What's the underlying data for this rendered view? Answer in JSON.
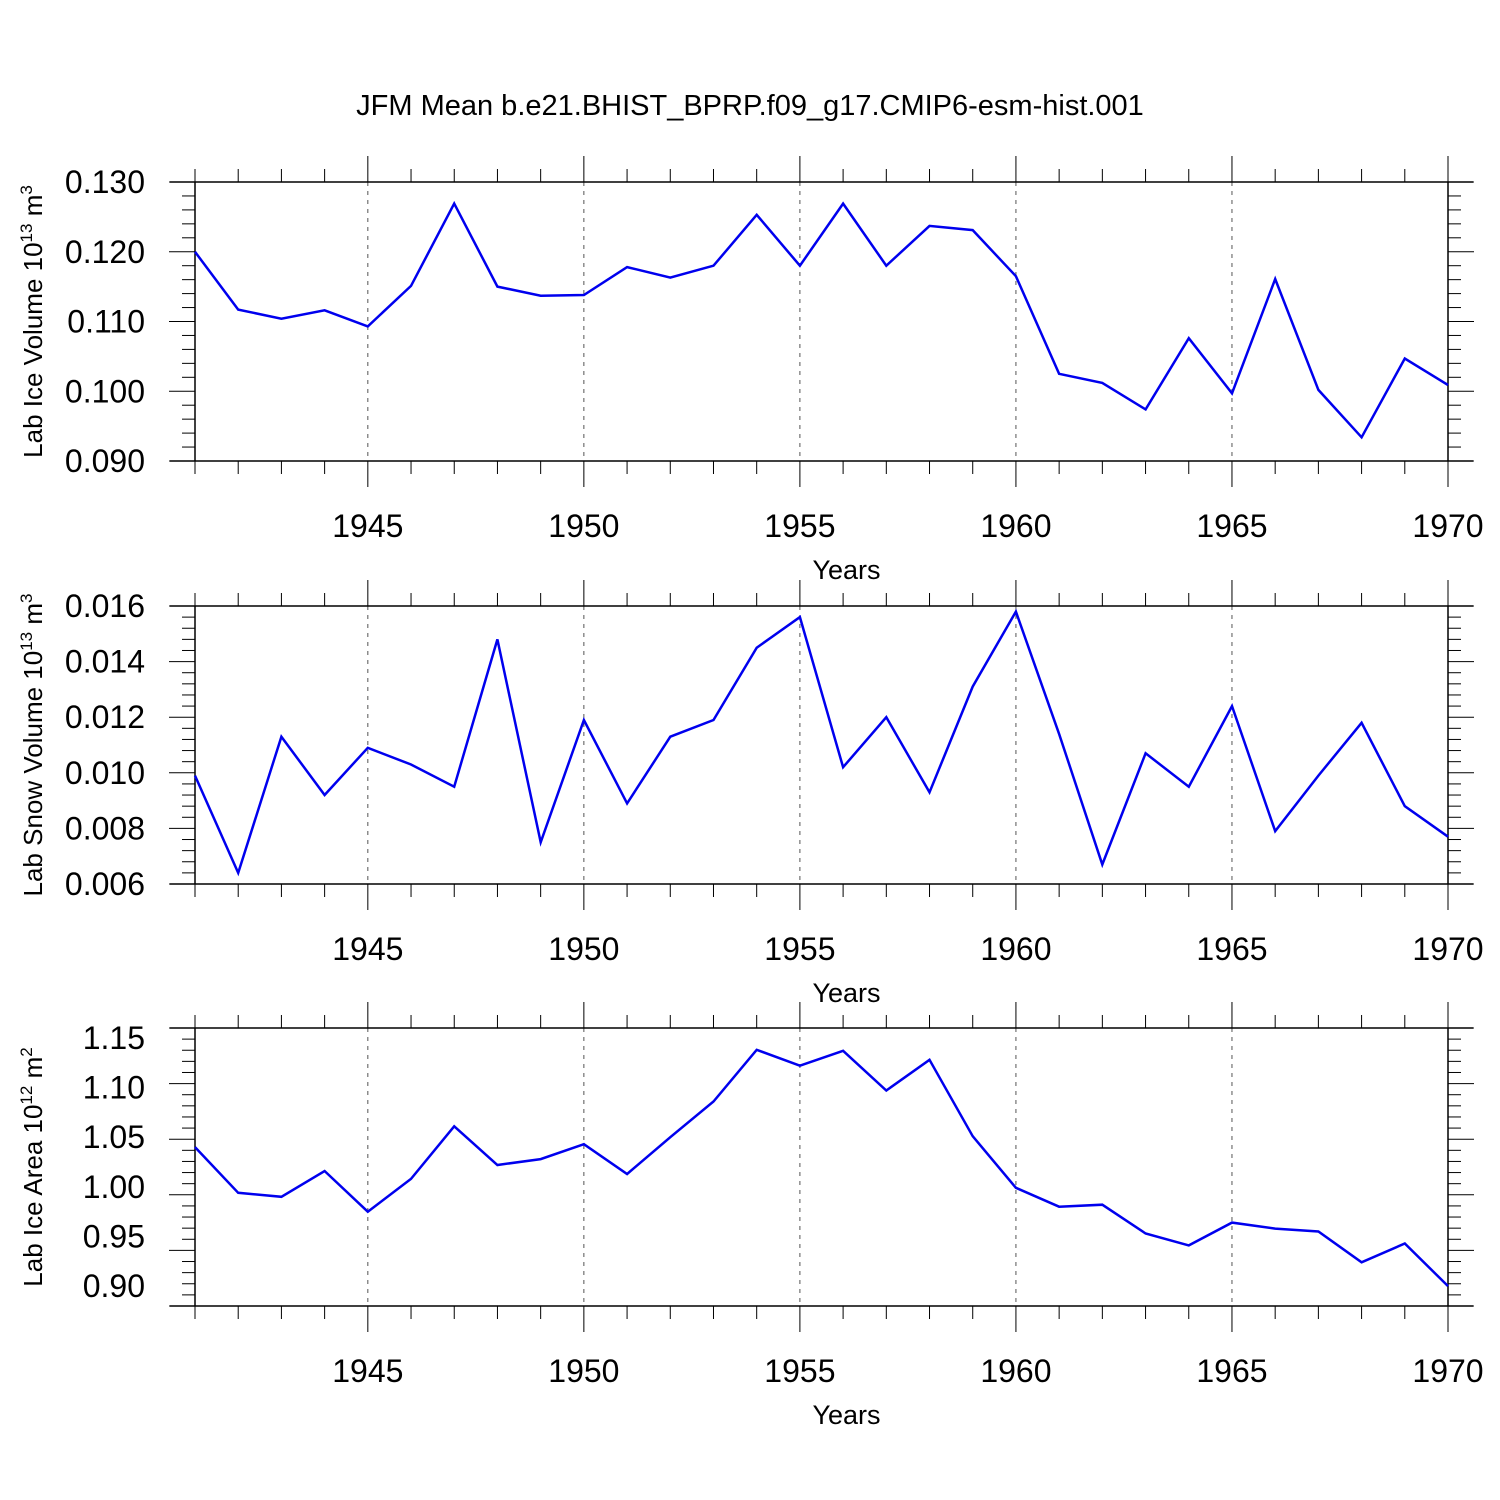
{
  "figure": {
    "title": "JFM Mean b.e21.BHIST_BPRP.f09_g17.CMIP6-esm-hist.001"
  },
  "colors": {
    "line": "#0000ee",
    "axis": "#000000",
    "grid": "#555555"
  },
  "chart_data": [
    {
      "type": "line",
      "xlabel": "Years",
      "ylabel": {
        "text": "Lab Ice Volume 10",
        "exp": "13",
        "unit": " m",
        "unit_exp": "3"
      },
      "xlim": [
        1941,
        1970
      ],
      "ylim": [
        0.09,
        0.13
      ],
      "x_ticks": [
        1945,
        1950,
        1955,
        1960,
        1965,
        1970
      ],
      "y_ticks": [
        "0.090",
        "0.100",
        "0.110",
        "0.120",
        "0.130"
      ],
      "grid": "vertical-dashed",
      "x": [
        1941,
        1942,
        1943,
        1944,
        1945,
        1946,
        1947,
        1948,
        1949,
        1950,
        1951,
        1952,
        1953,
        1954,
        1955,
        1956,
        1957,
        1958,
        1959,
        1960,
        1961,
        1962,
        1963,
        1964,
        1965,
        1966,
        1967,
        1968,
        1969,
        1970
      ],
      "values": [
        0.12,
        0.1117,
        0.1104,
        0.1116,
        0.1093,
        0.1151,
        0.1269,
        0.115,
        0.1137,
        0.1138,
        0.1178,
        0.1163,
        0.118,
        0.1253,
        0.118,
        0.1269,
        0.118,
        0.1237,
        0.1231,
        0.1165,
        0.1025,
        0.1012,
        0.0974,
        0.1076,
        0.0997,
        0.1161,
        0.1002,
        0.0934,
        0.1047,
        0.1009
      ]
    },
    {
      "type": "line",
      "xlabel": "Years",
      "ylabel": {
        "text": "Lab Snow Volume 10",
        "exp": "13",
        "unit": " m",
        "unit_exp": "3"
      },
      "xlim": [
        1941,
        1970
      ],
      "ylim": [
        0.006,
        0.016
      ],
      "x_ticks": [
        1945,
        1950,
        1955,
        1960,
        1965,
        1970
      ],
      "y_ticks": [
        "0.006",
        "0.008",
        "0.010",
        "0.012",
        "0.014",
        "0.016"
      ],
      "grid": "vertical-dashed",
      "x": [
        1941,
        1942,
        1943,
        1944,
        1945,
        1946,
        1947,
        1948,
        1949,
        1950,
        1951,
        1952,
        1953,
        1954,
        1955,
        1956,
        1957,
        1958,
        1959,
        1960,
        1961,
        1962,
        1963,
        1964,
        1965,
        1966,
        1967,
        1968,
        1969,
        1970
      ],
      "values": [
        0.0099,
        0.0064,
        0.0113,
        0.0092,
        0.0109,
        0.0103,
        0.0095,
        0.0148,
        0.0075,
        0.0119,
        0.0089,
        0.0113,
        0.0119,
        0.0145,
        0.0156,
        0.0102,
        0.012,
        0.0093,
        0.0131,
        0.0158,
        0.0114,
        0.0067,
        0.0107,
        0.0095,
        0.0124,
        0.0079,
        0.0099,
        0.0118,
        0.0088,
        0.0077
      ]
    },
    {
      "type": "line",
      "xlabel": "Years",
      "ylabel": {
        "text": "Lab Ice Area 10",
        "exp": "12",
        "unit": " m",
        "unit_exp": "2"
      },
      "xlim": [
        1941,
        1970
      ],
      "ylim": [
        0.88,
        1.16
      ],
      "x_ticks": [
        1945,
        1950,
        1955,
        1960,
        1965,
        1970
      ],
      "y_ticks": [
        "0.90",
        "0.95",
        "1.00",
        "1.05",
        "1.10",
        "1.15"
      ],
      "grid": "vertical-dashed",
      "x": [
        1941,
        1942,
        1943,
        1944,
        1945,
        1946,
        1947,
        1948,
        1949,
        1950,
        1951,
        1952,
        1953,
        1954,
        1955,
        1956,
        1957,
        1958,
        1959,
        1960,
        1961,
        1962,
        1963,
        1964,
        1965,
        1966,
        1967,
        1968,
        1969,
        1970
      ],
      "values": [
        1.04,
        0.994,
        0.99,
        1.016,
        0.975,
        1.008,
        1.061,
        1.022,
        1.028,
        1.043,
        1.013,
        1.05,
        1.086,
        1.138,
        1.122,
        1.137,
        1.097,
        1.128,
        1.051,
        0.999,
        0.98,
        0.982,
        0.953,
        0.941,
        0.964,
        0.958,
        0.955,
        0.924,
        0.943,
        0.9
      ]
    }
  ]
}
